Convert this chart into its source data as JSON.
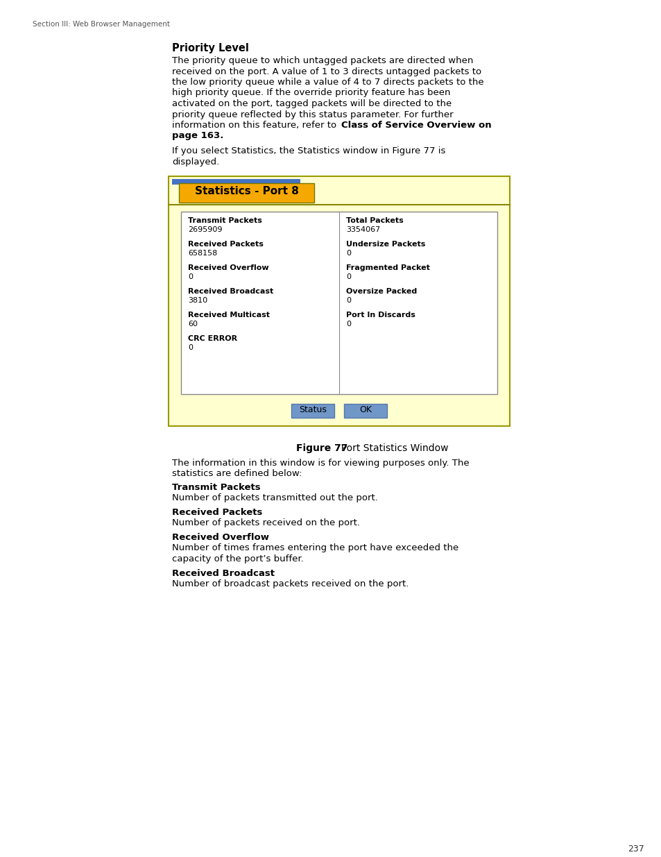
{
  "page_header": "Section III: Web Browser Management",
  "page_number": "237",
  "section_title": "Priority Level",
  "body_lines": [
    "The priority queue to which untagged packets are directed when",
    "received on the port. A value of 1 to 3 directs untagged packets to",
    "the low priority queue while a value of 4 to 7 directs packets to the",
    "high priority queue. If the override priority feature has been",
    "activated on the port, tagged packets will be directed to the",
    "priority queue reflected by this status parameter. For further",
    "information on this feature, refer to "
  ],
  "bold_inline1": "Class of Service Overview on",
  "bold_inline2": "page 163",
  "intro_line1": "If you select Statistics, the Statistics window in Figure 77 is",
  "intro_line2": "displayed.",
  "window_title": "Statistics - Port 8",
  "window_title_bg": "#F5A800",
  "window_bg": "#FFFFD0",
  "tab_bar_bg": "#4472C4",
  "content_bg": "#FFFFFF",
  "left_col": [
    [
      "Transmit Packets",
      "2695909"
    ],
    [
      "Received Packets",
      "658158"
    ],
    [
      "Received Overflow",
      "0"
    ],
    [
      "Received Broadcast",
      "3810"
    ],
    [
      "Received Multicast",
      "60"
    ],
    [
      "CRC ERROR",
      "0"
    ]
  ],
  "right_col": [
    [
      "Total Packets",
      "3354067"
    ],
    [
      "Undersize Packets",
      "0"
    ],
    [
      "Fragmented Packet",
      "0"
    ],
    [
      "Oversize Packed",
      "0"
    ],
    [
      "Port In Discards",
      "0"
    ]
  ],
  "button_status": "Status",
  "button_ok": "OK",
  "button_bg": "#7097C8",
  "figure_caption_bold": "Figure 77",
  "figure_caption_rest": "  Port Statistics Window",
  "post_caption_lines": [
    "The information in this window is for viewing purposes only. The",
    "statistics are defined below:"
  ],
  "sections": [
    {
      "title": "Transmit Packets",
      "body": [
        "Number of packets transmitted out the port."
      ]
    },
    {
      "title": "Received Packets",
      "body": [
        "Number of packets received on the port."
      ]
    },
    {
      "title": "Received Overflow",
      "body": [
        "Number of times frames entering the port have exceeded the",
        "capacity of the port’s buffer."
      ]
    },
    {
      "title": "Received Broadcast",
      "body": [
        "Number of broadcast packets received on the port."
      ]
    }
  ]
}
